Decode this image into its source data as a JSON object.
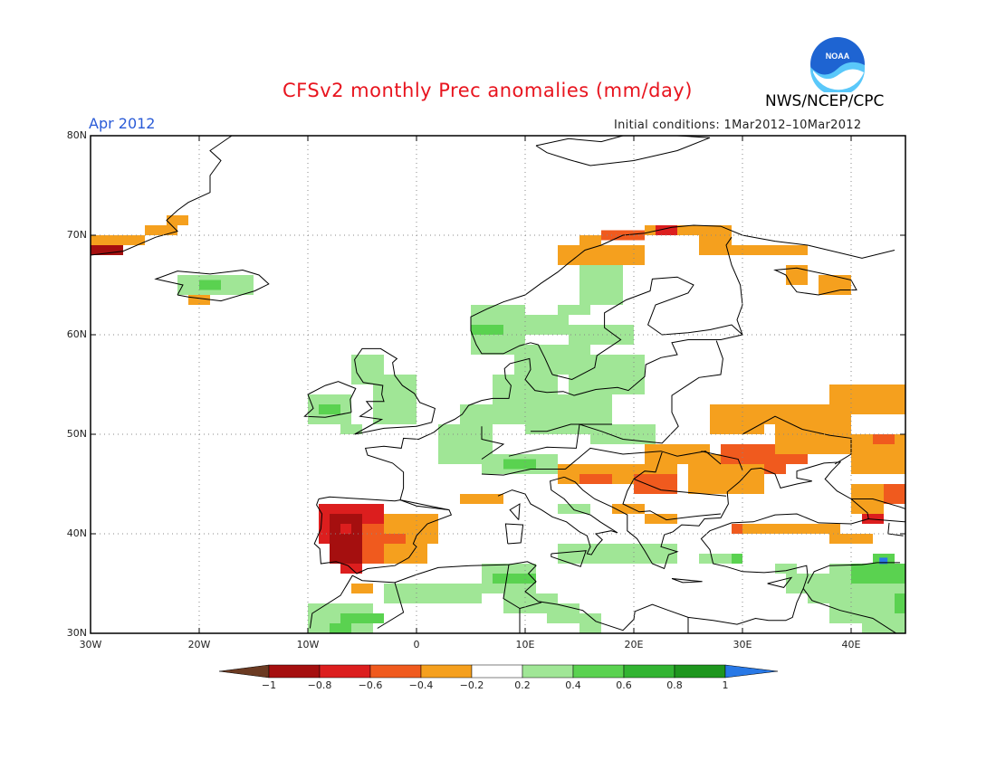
{
  "header": {
    "title": "CFSv2 monthly Prec anomalies (mm/day)",
    "month": "Apr 2012",
    "initial_conditions": "Initial conditions: 1Mar2012–10Mar2012",
    "agency": "NWS/NCEP/CPC",
    "logo_text": "NOAA"
  },
  "map": {
    "lon_range": [
      -30,
      45
    ],
    "lat_range": [
      30,
      80
    ],
    "lon_labels": [
      "30W",
      "20W",
      "10W",
      "0",
      "10E",
      "20E",
      "30E",
      "40E"
    ],
    "lat_labels": [
      "80N",
      "70N",
      "60N",
      "50N",
      "40N",
      "30N"
    ],
    "grid": true
  },
  "colorbar": {
    "labels": [
      "−1",
      "−0.8",
      "−0.6",
      "−0.4",
      "−0.2",
      "0.2",
      "0.4",
      "0.6",
      "0.8",
      "1"
    ],
    "colors": {
      "below": "#6b3a22",
      "bins": [
        "#a50f0f",
        "#dc1e1e",
        "#f05a1e",
        "#f5a01e",
        "#ffffff",
        "#a0e696",
        "#5ad250",
        "#32b432",
        "#1e961e"
      ],
      "above": "#2878e6"
    }
  }
}
